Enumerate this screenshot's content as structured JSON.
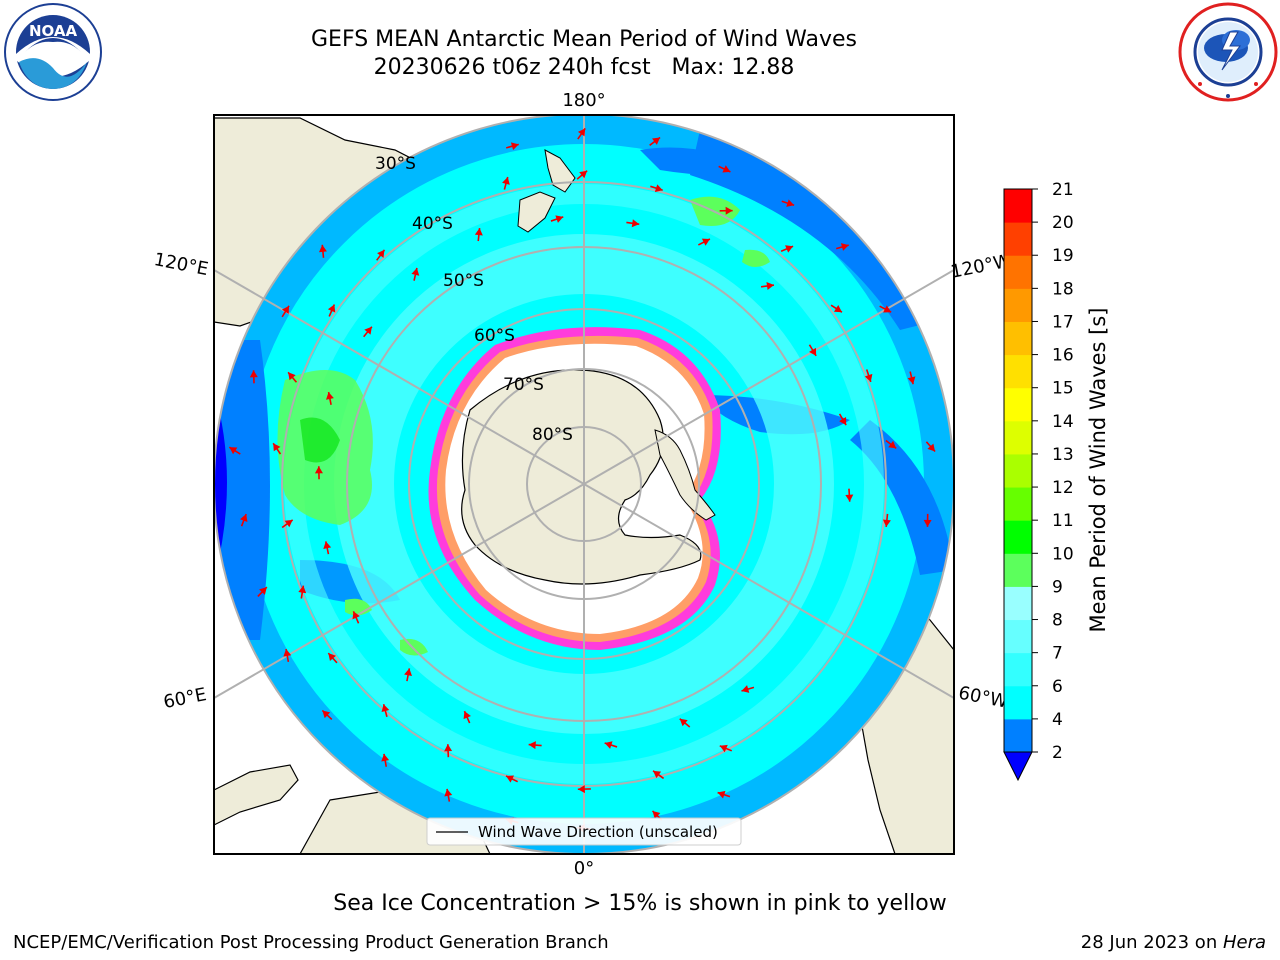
{
  "title": {
    "line1": "GEFS MEAN Antarctic Mean Period of Wind Waves",
    "line2": "20230626 t06z 240h fcst   Max: 12.88"
  },
  "logos": {
    "left": {
      "name": "NOAA",
      "ring_text": "NATIONAL OCEANIC AND ATMOSPHERIC ADMINISTRATION",
      "bottom_text": "U.S. DEPARTMENT OF COMMERCE"
    },
    "right": {
      "ring_text": "NATIONAL WEATHER SERVICE"
    }
  },
  "map": {
    "projection": "south polar stereographic",
    "longitude_labels": [
      "180°",
      "120°E",
      "120°W",
      "60°E",
      "60°W",
      "0°"
    ],
    "latitude_labels": [
      "30°S",
      "40°S",
      "50°S",
      "60°S",
      "70°S",
      "80°S"
    ],
    "legend_label": "Wind Wave Direction (unscaled)",
    "colors": {
      "land": "#eeecd9",
      "open_ocean": "#00ffff",
      "light_cyan": "#4dffff",
      "mid_blue": "#0080ff",
      "deep_blue": "#0000ff",
      "green": "#5cff5c",
      "sea_ice_pink": "#ff3cdc",
      "sea_ice_yellow": "#ffbf40",
      "arrow": "#ee0000",
      "grid": "#b0b0b0"
    }
  },
  "colorbar": {
    "title": "Mean Period of Wind Waves [s]",
    "ticks": [
      "2",
      "4",
      "6",
      "7",
      "8",
      "9",
      "10",
      "11",
      "12",
      "13",
      "14",
      "15",
      "16",
      "17",
      "18",
      "19",
      "20",
      "21"
    ],
    "bands": [
      "#0080ff",
      "#00ffff",
      "#33ffff",
      "#66ffff",
      "#99ffff",
      "#5cff5c",
      "#00ff00",
      "#66ff00",
      "#aaff00",
      "#ddff00",
      "#ffff00",
      "#ffe000",
      "#ffbf00",
      "#ff9900",
      "#ff7300",
      "#ff4000",
      "#ff0000"
    ],
    "under_color": "#0000ff"
  },
  "caption": "Sea Ice Concentration > 15% is shown in pink to yellow",
  "footer": {
    "left": "NCEP/EMC/Verification Post Processing Product Generation Branch",
    "right_prefix": "28 Jun 2023 on ",
    "right_host": "Hera"
  }
}
